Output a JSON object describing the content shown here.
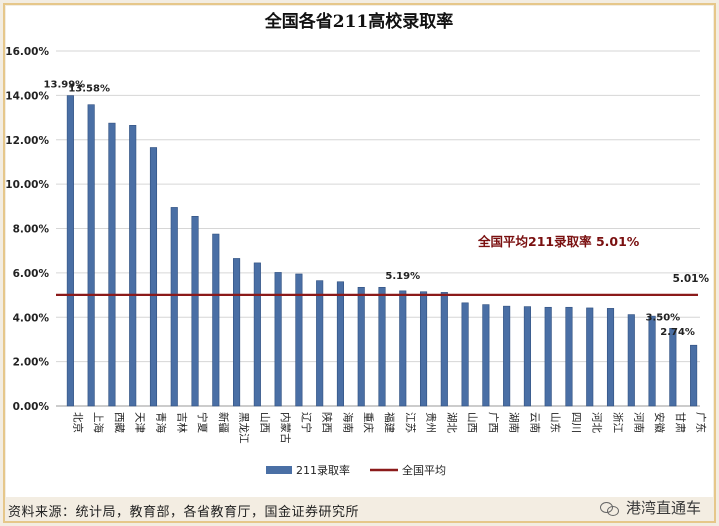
{
  "chart_data": {
    "type": "bar",
    "title": "全国各省211高校录取率",
    "categories": [
      "北京",
      "上海",
      "西藏",
      "天津",
      "青海",
      "吉林",
      "宁夏",
      "新疆",
      "黑龙江",
      "山西",
      "内蒙古",
      "辽宁",
      "陕西",
      "海南",
      "重庆",
      "福建",
      "江苏",
      "贵州",
      "湖北",
      "山西",
      "广西",
      "湖南",
      "云南",
      "山东",
      "四川",
      "河北",
      "浙江",
      "河南",
      "安徽",
      "甘肃",
      "广东"
    ],
    "series": [
      {
        "name": "211录取率",
        "color": "#4a6fa5",
        "values": [
          13.99,
          13.58,
          12.75,
          12.65,
          11.65,
          8.95,
          8.55,
          7.75,
          6.65,
          6.45,
          6.02,
          5.95,
          5.65,
          5.6,
          5.35,
          5.35,
          5.19,
          5.15,
          5.12,
          4.65,
          4.57,
          4.5,
          4.48,
          4.45,
          4.45,
          4.42,
          4.4,
          4.12,
          4.05,
          3.5,
          2.74
        ]
      },
      {
        "name": "全国平均",
        "color": "#8b1a1a",
        "value": 5.01
      }
    ],
    "ylim": [
      0,
      16
    ],
    "yticks": [
      "0.00%",
      "2.00%",
      "4.00%",
      "6.00%",
      "8.00%",
      "10.00%",
      "12.00%",
      "14.00%",
      "16.00%"
    ],
    "data_labels": [
      {
        "index": 0,
        "text": "13.99%"
      },
      {
        "index": 1,
        "text": "13.58%"
      },
      {
        "index": 16,
        "text": "5.19%"
      },
      {
        "index": 29,
        "text": "3.50%"
      },
      {
        "index": 30,
        "text": "2.74%"
      }
    ],
    "avg_label": "5.01%",
    "annotation": "全国平均211录取率 5.01%",
    "legend_position": "bottom",
    "grid": true
  },
  "footer": {
    "source": "资料来源：统计局，教育部，各省教育厅，国金证券研究所",
    "watermark": "港湾直通车",
    "watermark_icon": "wechat-icon"
  }
}
